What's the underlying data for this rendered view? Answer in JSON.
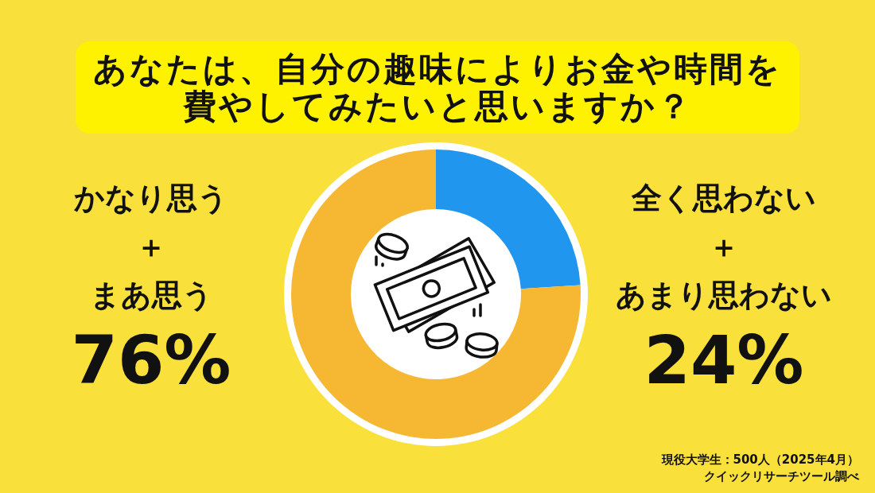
{
  "chart_data": {
    "type": "donut",
    "title": "あなたは、自分の趣味によりお金や時間を費やしてみたいと思いますか？",
    "categories": [
      "全く思わない＋あまり思わない",
      "かなり思う＋まあ思う"
    ],
    "values": [
      24,
      76
    ],
    "colors": [
      "#2196ee",
      "#f6b733"
    ],
    "value_labels": [
      "24%",
      "76%"
    ],
    "annotations": [
      "現役大学生：500人（2025年4月）",
      "クイックリサーチツール調べ"
    ]
  }
}
